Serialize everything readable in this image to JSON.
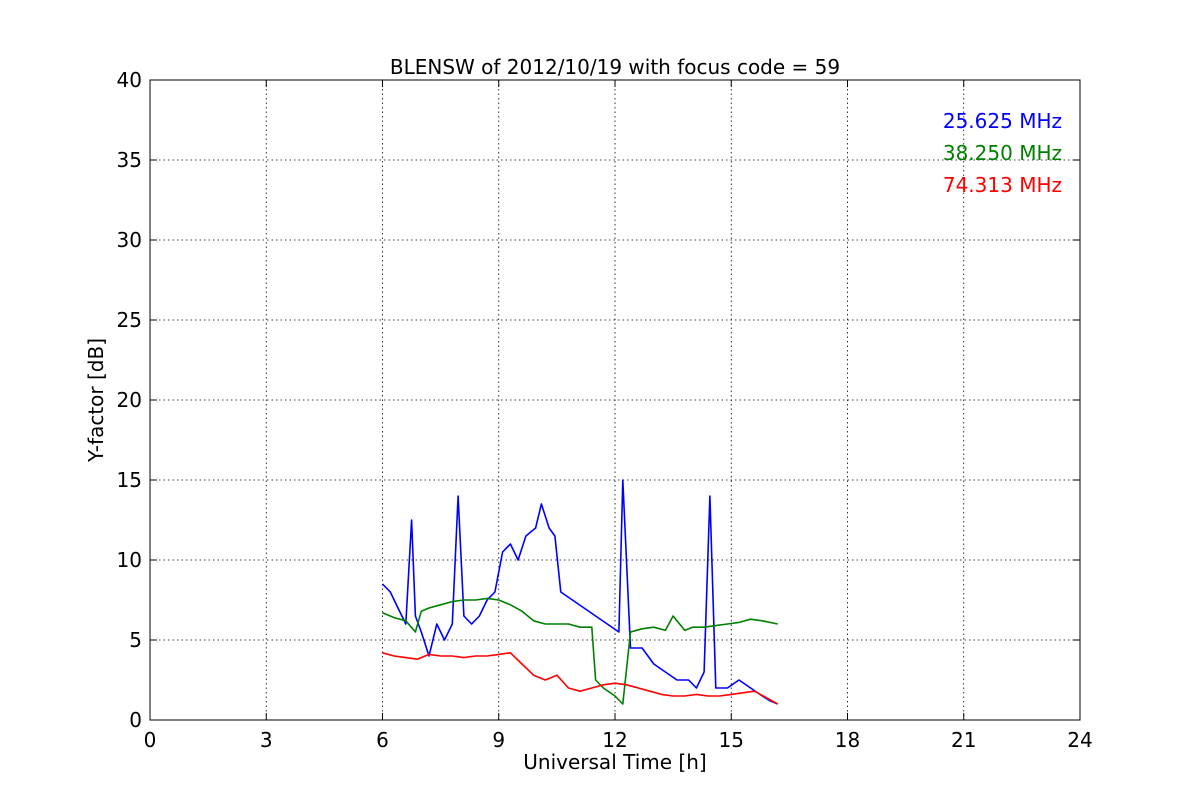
{
  "chart_data": {
    "type": "line",
    "title": "BLENSW of 2012/10/19 with focus code = 59",
    "xlabel": "Universal Time [h]",
    "ylabel": "Y-factor [dB]",
    "xlim": [
      0,
      24
    ],
    "ylim": [
      0,
      40
    ],
    "xticks": [
      "0",
      "3",
      "6",
      "9",
      "12",
      "15",
      "18",
      "21",
      "24"
    ],
    "yticks": [
      "0",
      "5",
      "10",
      "15",
      "20",
      "25",
      "30",
      "35",
      "40"
    ],
    "grid": true,
    "legend_position": "top-right",
    "series": [
      {
        "name": "25.625 MHz",
        "color": "#0000ff",
        "x": [
          6.0,
          6.2,
          6.4,
          6.6,
          6.75,
          6.85,
          7.0,
          7.2,
          7.4,
          7.6,
          7.8,
          7.95,
          8.1,
          8.3,
          8.5,
          8.7,
          8.9,
          9.1,
          9.3,
          9.5,
          9.7,
          9.95,
          10.1,
          10.3,
          10.45,
          10.6,
          10.9,
          11.2,
          11.5,
          11.8,
          12.1,
          12.2,
          12.4,
          12.7,
          13.0,
          13.3,
          13.6,
          13.9,
          14.1,
          14.3,
          14.45,
          14.6,
          14.9,
          15.2,
          15.5,
          15.8,
          16.0,
          16.2
        ],
        "y": [
          8.5,
          8.0,
          7.0,
          6.0,
          12.5,
          6.5,
          5.5,
          4.0,
          6.0,
          5.0,
          6.0,
          14.0,
          6.5,
          6.0,
          6.5,
          7.5,
          8.0,
          10.5,
          11.0,
          10.0,
          11.5,
          12.0,
          13.5,
          12.0,
          11.5,
          8.0,
          7.5,
          7.0,
          6.5,
          6.0,
          5.5,
          15.0,
          4.5,
          4.5,
          3.5,
          3.0,
          2.5,
          2.5,
          2.0,
          3.0,
          14.0,
          2.0,
          2.0,
          2.5,
          2.0,
          1.5,
          1.2,
          1.0
        ]
      },
      {
        "name": "38.250 MHz",
        "color": "#008000",
        "x": [
          6.0,
          6.3,
          6.6,
          6.85,
          7.0,
          7.2,
          7.5,
          7.8,
          8.1,
          8.4,
          8.7,
          9.0,
          9.3,
          9.6,
          9.9,
          10.2,
          10.5,
          10.8,
          11.1,
          11.4,
          11.5,
          11.7,
          12.0,
          12.2,
          12.4,
          12.7,
          13.0,
          13.3,
          13.5,
          13.8,
          14.0,
          14.3,
          14.6,
          14.9,
          15.2,
          15.5,
          15.8,
          16.2
        ],
        "y": [
          6.7,
          6.4,
          6.2,
          5.5,
          6.8,
          7.0,
          7.2,
          7.4,
          7.5,
          7.5,
          7.6,
          7.5,
          7.2,
          6.8,
          6.2,
          6.0,
          6.0,
          6.0,
          5.8,
          5.8,
          2.5,
          2.0,
          1.5,
          1.0,
          5.5,
          5.7,
          5.8,
          5.6,
          6.5,
          5.6,
          5.8,
          5.8,
          5.9,
          6.0,
          6.1,
          6.3,
          6.2,
          6.0
        ]
      },
      {
        "name": "74.313 MHz",
        "color": "#ff0000",
        "x": [
          6.0,
          6.3,
          6.6,
          6.9,
          7.2,
          7.5,
          7.8,
          8.1,
          8.4,
          8.7,
          9.0,
          9.3,
          9.6,
          9.9,
          10.2,
          10.5,
          10.8,
          11.1,
          11.4,
          11.7,
          12.0,
          12.3,
          12.6,
          12.9,
          13.2,
          13.5,
          13.8,
          14.1,
          14.4,
          14.7,
          15.0,
          15.3,
          15.6,
          15.9,
          16.2
        ],
        "y": [
          4.2,
          4.0,
          3.9,
          3.8,
          4.1,
          4.0,
          4.0,
          3.9,
          4.0,
          4.0,
          4.1,
          4.2,
          3.5,
          2.8,
          2.5,
          2.8,
          2.0,
          1.8,
          2.0,
          2.2,
          2.3,
          2.2,
          2.0,
          1.8,
          1.6,
          1.5,
          1.5,
          1.6,
          1.5,
          1.5,
          1.6,
          1.7,
          1.8,
          1.4,
          1.0
        ]
      }
    ]
  }
}
